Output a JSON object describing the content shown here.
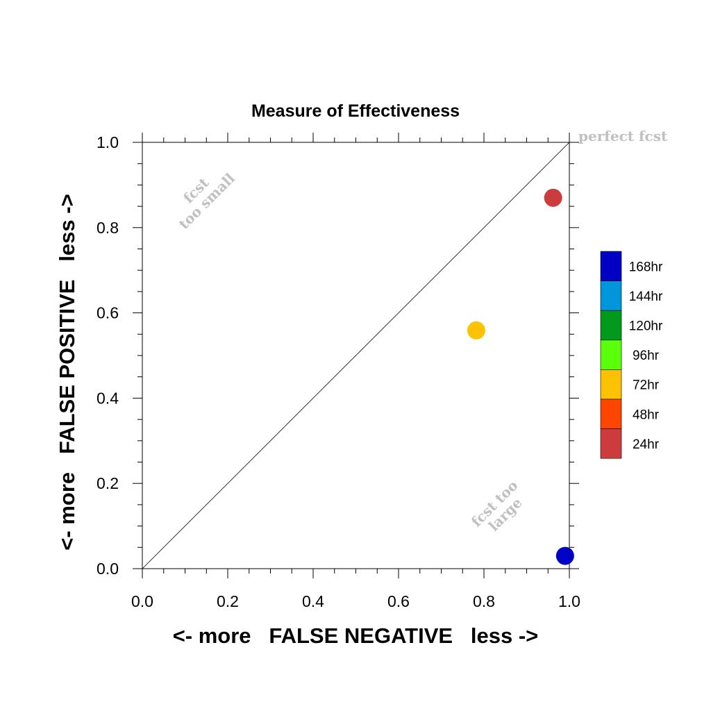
{
  "chart_data": {
    "type": "scatter",
    "title": "Measure of Effectiveness",
    "xlabel": "<- more   FALSE NEGATIVE   less ->",
    "ylabel": "<- more   FALSE POSITIVE   less ->",
    "xlim": [
      0.0,
      1.0
    ],
    "ylim": [
      0.0,
      1.0
    ],
    "x_ticks": [
      "0.0",
      "0.2",
      "0.4",
      "0.6",
      "0.8",
      "1.0"
    ],
    "y_ticks": [
      "0.0",
      "0.2",
      "0.4",
      "0.6",
      "0.8",
      "1.0"
    ],
    "grid": false,
    "reference_line": {
      "from": [
        0,
        0
      ],
      "to": [
        1,
        1
      ]
    },
    "points": [
      {
        "series": "24hr",
        "x": 0.962,
        "y": 0.87
      },
      {
        "series": "72hr",
        "x": 0.782,
        "y": 0.559
      },
      {
        "series": "168hr",
        "x": 0.99,
        "y": 0.03
      }
    ],
    "annotations": {
      "perfect": "perfect fcst",
      "too_small": [
        "fcst",
        "too small"
      ],
      "too_large": [
        "fcst too",
        "large"
      ]
    },
    "legend": {
      "placement": "right",
      "entries": [
        {
          "label": "168hr",
          "color": "#0000c4"
        },
        {
          "label": "144hr",
          "color": "#0096dc"
        },
        {
          "label": "120hr",
          "color": "#009a1c"
        },
        {
          "label": "96hr",
          "color": "#5aff0c"
        },
        {
          "label": "72hr",
          "color": "#ffc200"
        },
        {
          "label": "48hr",
          "color": "#ff4600"
        },
        {
          "label": "24hr",
          "color": "#cc3c3c"
        }
      ]
    }
  }
}
